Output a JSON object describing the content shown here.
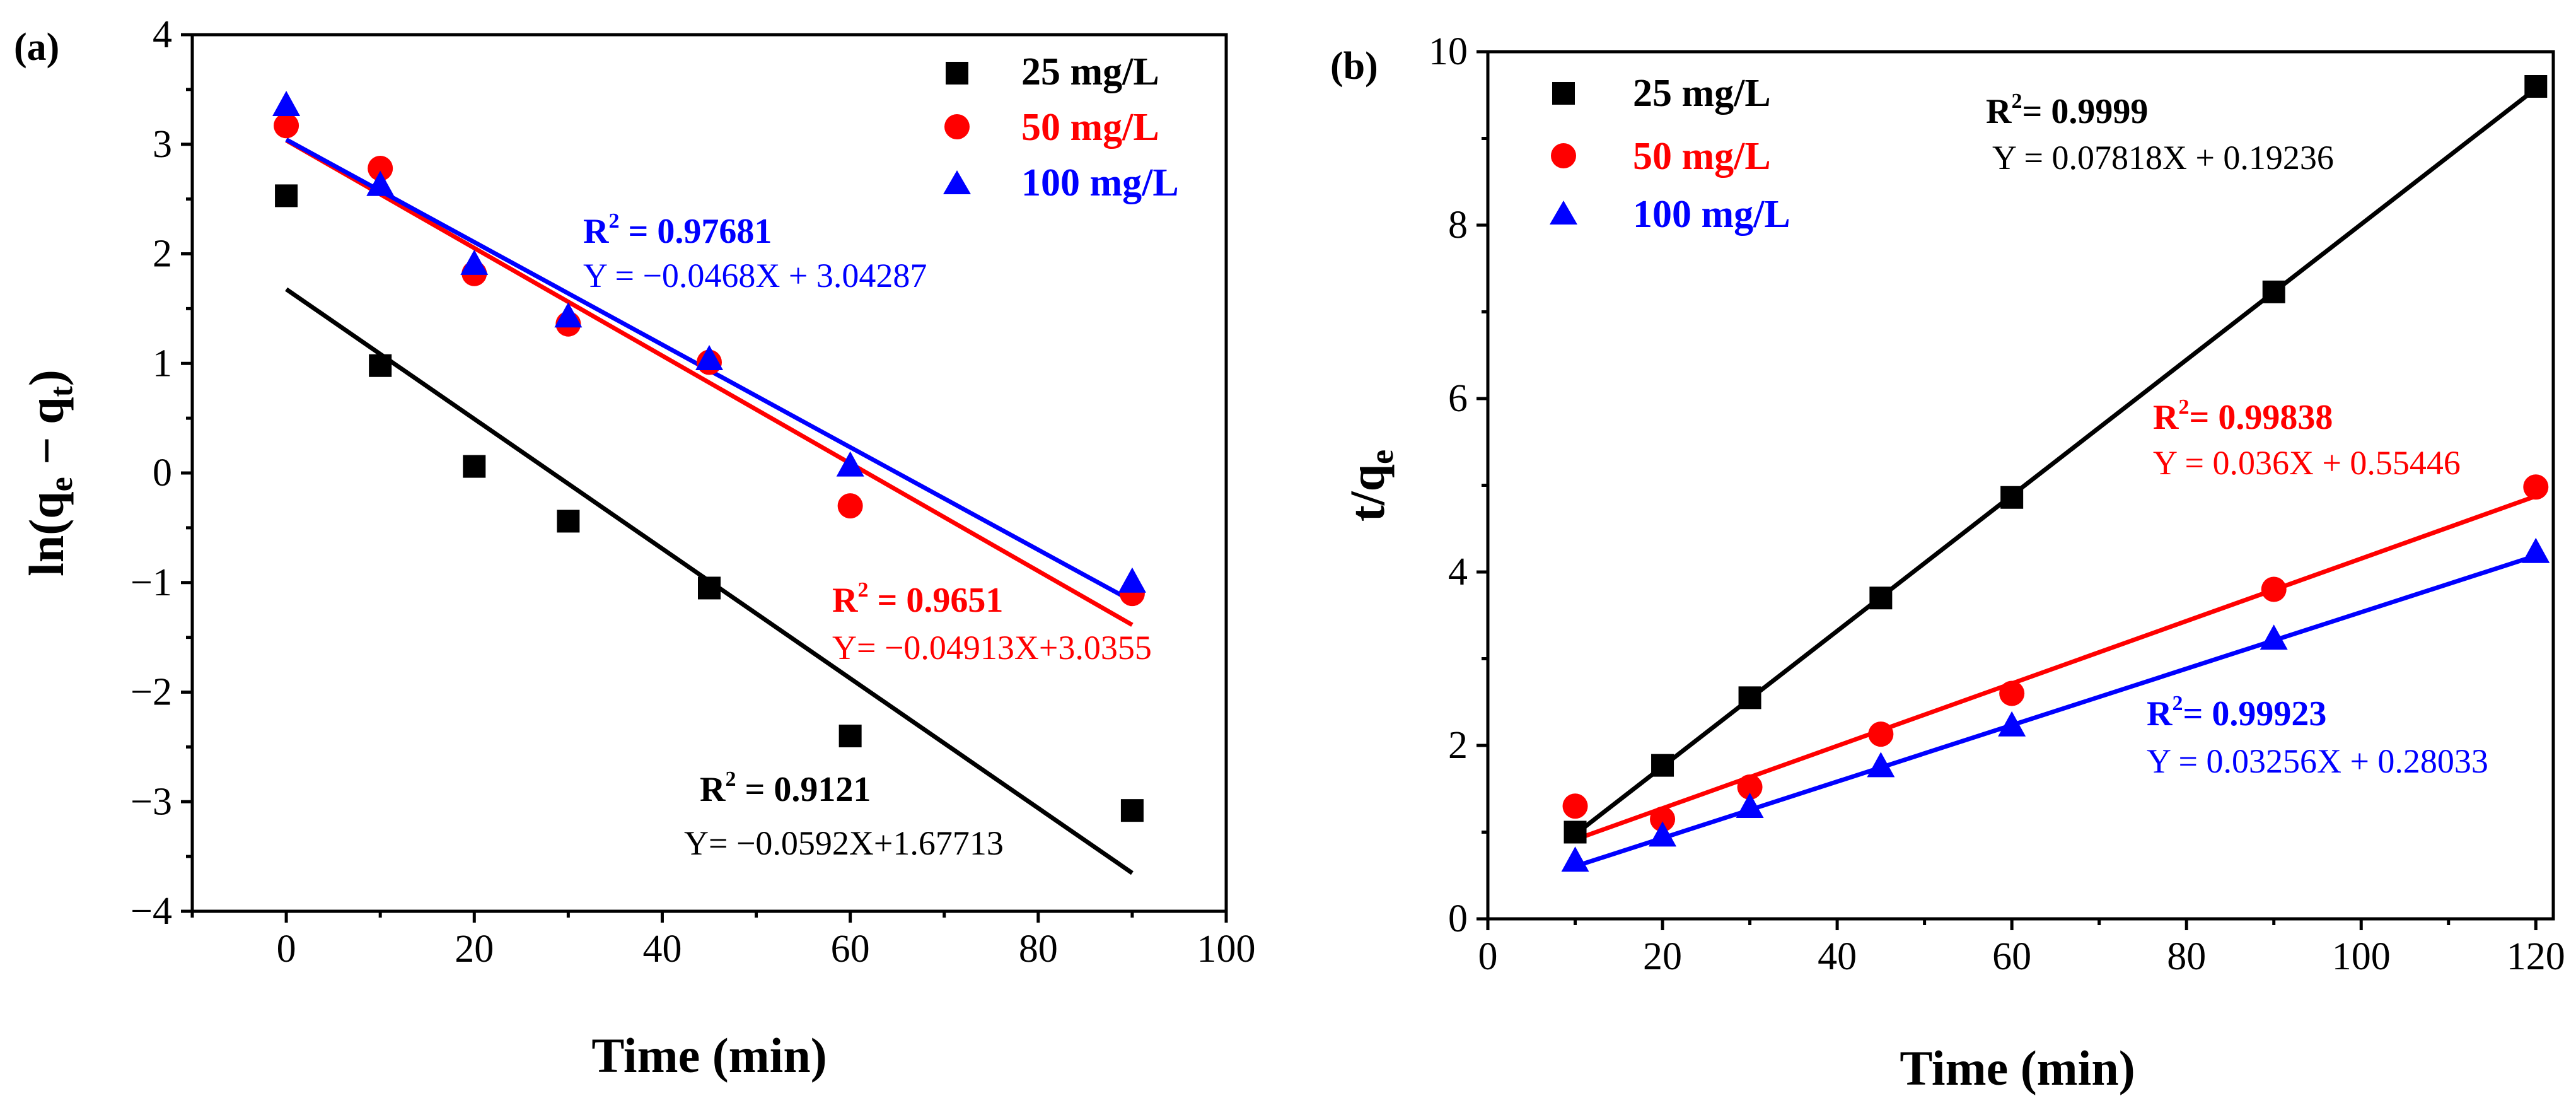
{
  "chart_data": [
    {
      "type": "scatter",
      "panel_label": "(a)",
      "xlabel": "Time (min)",
      "ylabel": "ln(q<sub>e</sub> - q<sub>t</sub>)",
      "xlim": [
        -10,
        100
      ],
      "ylim": [
        -4,
        4
      ],
      "xticks": [
        "0",
        "20",
        "40",
        "60",
        "80",
        "100"
      ],
      "yticks": [
        "−4",
        "−3",
        "−2",
        "−1",
        "0",
        "1",
        "2",
        "3",
        "4"
      ],
      "series": [
        {
          "name": "25 mg/L",
          "color": "#000000",
          "marker": "square",
          "x": [
            0,
            10,
            20,
            30,
            45,
            60,
            90
          ],
          "y": [
            2.53,
            0.98,
            0.06,
            -0.44,
            -1.05,
            -2.4,
            -3.08
          ],
          "fit": {
            "slope": -0.0592,
            "intercept": 1.67713,
            "x_range": [
              0,
              90
            ]
          },
          "r2_label": "R<sup>2</sup> = 0.9121",
          "equation": "Y= −0.0592X+1.67713"
        },
        {
          "name": "50 mg/L",
          "color": "#ff0000",
          "marker": "circle",
          "x": [
            0,
            10,
            20,
            30,
            45,
            60,
            90
          ],
          "y": [
            3.17,
            2.78,
            1.82,
            1.36,
            1.01,
            -0.3,
            -1.1
          ],
          "fit": {
            "slope": -0.04913,
            "intercept": 3.0355,
            "x_range": [
              0,
              90
            ]
          },
          "r2_label": "R<sup>2</sup> = 0.9651",
          "equation": "Y= −0.04913X+3.0355"
        },
        {
          "name": "100 mg/L",
          "color": "#0000ff",
          "marker": "triangle",
          "x": [
            0,
            10,
            20,
            30,
            45,
            60,
            90
          ],
          "y": [
            3.35,
            2.62,
            1.9,
            1.42,
            1.03,
            0.06,
            -1.0
          ],
          "fit": {
            "slope": -0.0468,
            "intercept": 3.04287,
            "x_range": [
              0,
              90
            ]
          },
          "r2_label": "R<sup>2</sup> = 0.97681",
          "equation": "Y = −0.0468X + 3.04287"
        }
      ]
    },
    {
      "type": "scatter",
      "panel_label": "(b)",
      "xlabel": "Time (min)",
      "ylabel": "t/q<sub>e</sub>",
      "xlim": [
        0,
        122
      ],
      "ylim": [
        0,
        10
      ],
      "xticks": [
        "0",
        "20",
        "40",
        "60",
        "80",
        "100",
        "120"
      ],
      "yticks": [
        "0",
        "2",
        "4",
        "6",
        "8",
        "10"
      ],
      "series": [
        {
          "name": "25 mg/L",
          "color": "#000000",
          "marker": "square",
          "x": [
            10,
            20,
            30,
            45,
            60,
            90,
            120
          ],
          "y": [
            1.0,
            1.77,
            2.55,
            3.7,
            4.86,
            7.23,
            9.6
          ],
          "fit": {
            "slope": 0.07818,
            "intercept": 0.19236,
            "x_range": [
              10,
              120
            ]
          },
          "r2_label": "R<sup>2</sup>= 0.9999",
          "equation": "Y = 0.07818X + 0.19236"
        },
        {
          "name": "50 mg/L",
          "color": "#ff0000",
          "marker": "circle",
          "x": [
            10,
            20,
            30,
            45,
            60,
            90,
            120
          ],
          "y": [
            1.3,
            1.15,
            1.52,
            2.13,
            2.6,
            3.8,
            4.98
          ],
          "fit": {
            "slope": 0.036,
            "intercept": 0.55446,
            "x_range": [
              10,
              120
            ]
          },
          "r2_label": "R<sup>2</sup>= 0.99838",
          "equation": "Y = 0.036X + 0.55446"
        },
        {
          "name": "100 mg/L",
          "color": "#0000ff",
          "marker": "triangle",
          "x": [
            10,
            20,
            30,
            45,
            60,
            90,
            120
          ],
          "y": [
            0.66,
            0.95,
            1.28,
            1.75,
            2.22,
            3.22,
            4.22
          ],
          "fit": {
            "slope": 0.03256,
            "intercept": 0.28033,
            "x_range": [
              10,
              120
            ]
          },
          "r2_label": "R<sup>2</sup>= 0.99923",
          "equation": "Y = 0.03256X + 0.28033"
        }
      ]
    }
  ]
}
